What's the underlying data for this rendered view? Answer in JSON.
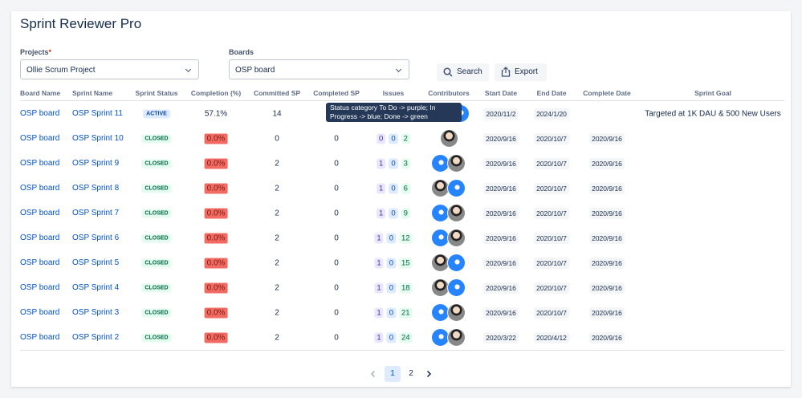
{
  "header": {
    "title": "Sprint Reviewer Pro"
  },
  "filters": {
    "projects": {
      "label": "Projects",
      "required": "*",
      "value": "Ollie Scrum Project"
    },
    "boards": {
      "label": "Boards",
      "value": "OSP board"
    },
    "search": "Search",
    "export": "Export"
  },
  "table": {
    "columns": [
      "Board Name",
      "Sprint Name",
      "Sprint Status",
      "Completion (%)",
      "Committed SP",
      "Completed SP",
      "Issues",
      "Contributors",
      "Start Date",
      "End Date",
      "Complete Date",
      "Sprint Goal"
    ],
    "rows": [
      {
        "board": "OSP board",
        "sprint": "OSP Sprint 11",
        "status": "ACTIVE",
        "completion": "57.1%",
        "committed": 14,
        "completed": null,
        "issues": null,
        "start": "2020/11/2",
        "end": "2024/1/20",
        "complete": null,
        "goal": "Targeted at 1K DAU & 500 New Users"
      },
      {
        "board": "OSP board",
        "sprint": "OSP Sprint 10",
        "status": "CLOSED",
        "completion": "0.0%",
        "committed": 0,
        "completed": 0,
        "issues": [
          0,
          0,
          2
        ],
        "start": "2020/9/16",
        "end": "2020/10/7",
        "complete": "2020/9/16",
        "goal": null
      },
      {
        "board": "OSP board",
        "sprint": "OSP Sprint 9",
        "status": "CLOSED",
        "completion": "0.0%",
        "committed": 2,
        "completed": 0,
        "issues": [
          1,
          0,
          3
        ],
        "start": "2020/9/16",
        "end": "2020/10/7",
        "complete": "2020/9/16",
        "goal": null
      },
      {
        "board": "OSP board",
        "sprint": "OSP Sprint 8",
        "status": "CLOSED",
        "completion": "0.0%",
        "committed": 2,
        "completed": 0,
        "issues": [
          1,
          0,
          6
        ],
        "start": "2020/9/16",
        "end": "2020/10/7",
        "complete": "2020/9/16",
        "goal": null
      },
      {
        "board": "OSP board",
        "sprint": "OSP Sprint 7",
        "status": "CLOSED",
        "completion": "0.0%",
        "committed": 2,
        "completed": 0,
        "issues": [
          1,
          0,
          9
        ],
        "start": "2020/9/16",
        "end": "2020/10/7",
        "complete": "2020/9/16",
        "goal": null
      },
      {
        "board": "OSP board",
        "sprint": "OSP Sprint 6",
        "status": "CLOSED",
        "completion": "0.0%",
        "committed": 2,
        "completed": 0,
        "issues": [
          1,
          0,
          12
        ],
        "start": "2020/9/16",
        "end": "2020/10/7",
        "complete": "2020/9/16",
        "goal": null
      },
      {
        "board": "OSP board",
        "sprint": "OSP Sprint 5",
        "status": "CLOSED",
        "completion": "0.0%",
        "committed": 2,
        "completed": 0,
        "issues": [
          1,
          0,
          15
        ],
        "start": "2020/9/16",
        "end": "2020/10/7",
        "complete": "2020/9/16",
        "goal": null
      },
      {
        "board": "OSP board",
        "sprint": "OSP Sprint 4",
        "status": "CLOSED",
        "completion": "0.0%",
        "committed": 2,
        "completed": 0,
        "issues": [
          1,
          0,
          18
        ],
        "start": "2020/9/16",
        "end": "2020/10/7",
        "complete": "2020/9/16",
        "goal": null
      },
      {
        "board": "OSP board",
        "sprint": "OSP Sprint 3",
        "status": "CLOSED",
        "completion": "0.0%",
        "committed": 2,
        "completed": 0,
        "issues": [
          1,
          0,
          21
        ],
        "start": "2020/9/16",
        "end": "2020/10/7",
        "complete": "2020/9/16",
        "goal": null
      },
      {
        "board": "OSP board",
        "sprint": "OSP Sprint 2",
        "status": "CLOSED",
        "completion": "0.0%",
        "committed": 2,
        "completed": 0,
        "issues": [
          1,
          0,
          24
        ],
        "start": "2020/3/22",
        "end": "2020/4/12",
        "complete": "2020/9/16",
        "goal": null
      }
    ]
  },
  "tooltip": "Status category To Do -> purple; In Progress -> blue; Done -> green",
  "pagination": {
    "pages": [
      "1",
      "2"
    ]
  }
}
